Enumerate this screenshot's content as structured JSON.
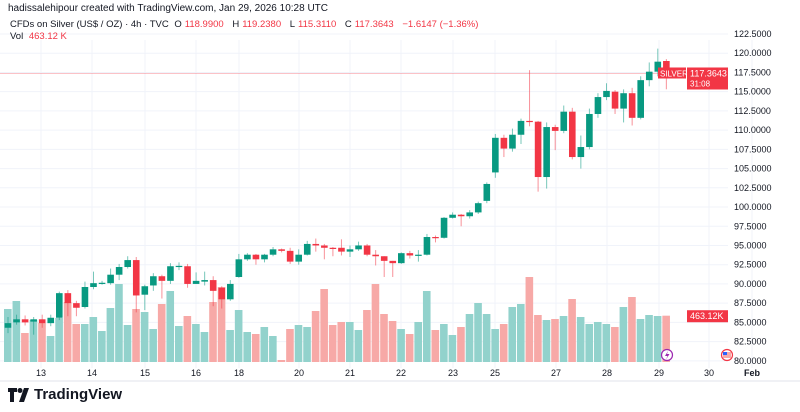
{
  "credit": "hadissalehipour created with TradingView.com, Jan 29, 2026 10:28 UTC",
  "legend": {
    "symbol": "CFDs on Silver (US$ / OZ) · 4h · TVC",
    "open_label": "O",
    "open": "118.9900",
    "high_label": "H",
    "high": "119.2380",
    "low_label": "L",
    "low": "115.3110",
    "close_label": "C",
    "close": "117.3643",
    "change": "−1.6147 (−1.36%)",
    "vol_label": "Vol",
    "vol": "463.12 K"
  },
  "price_axis": [
    "122.5000",
    "120.0000",
    "117.5000",
    "115.0000",
    "112.5000",
    "110.0000",
    "107.5000",
    "105.0000",
    "102.5000",
    "100.0000",
    "97.5000",
    "95.0000",
    "92.5000",
    "90.0000",
    "87.5000",
    "85.0000",
    "82.5000",
    "80.0000"
  ],
  "time_axis": [
    "13",
    "14",
    "15",
    "16",
    "18",
    "20",
    "21",
    "22",
    "23",
    "25",
    "27",
    "28",
    "29",
    "30",
    "Feb"
  ],
  "last_price": {
    "symbol": "SILVER",
    "price": "117.3643",
    "countdown": "31:08",
    "value": 117.3643
  },
  "volume_badge": "463.12K",
  "colors": {
    "up": "#089981",
    "down": "#f23645",
    "vol_up": "#92d2cc",
    "vol_down": "#f7a9a7"
  },
  "icons": [
    "lightning-event-icon",
    "us-flag-event-icon"
  ],
  "logo": "TradingView",
  "chart_data": {
    "type": "candlestick",
    "interval": "4h",
    "ylim": [
      80,
      122.5
    ],
    "fields": [
      "open",
      "high",
      "low",
      "close",
      "volume_k"
    ],
    "candles": [
      [
        84.3,
        85.7,
        83.6,
        84.9,
        530
      ],
      [
        85.0,
        86.0,
        84.7,
        85.4,
        610
      ],
      [
        85.4,
        85.9,
        84.6,
        85.0,
        290
      ],
      [
        85.1,
        85.7,
        83.4,
        85.4,
        420
      ],
      [
        85.4,
        86.0,
        84.3,
        84.9,
        390
      ],
      [
        84.9,
        86.0,
        84.5,
        85.6,
        260
      ],
      [
        85.6,
        89.0,
        85.3,
        88.8,
        440
      ],
      [
        88.8,
        89.2,
        85.8,
        87.5,
        600
      ],
      [
        87.5,
        87.8,
        85.8,
        86.9,
        380
      ],
      [
        87.0,
        90.3,
        86.8,
        89.6,
        380
      ],
      [
        89.6,
        91.6,
        89.3,
        90.1,
        450
      ],
      [
        90.1,
        90.4,
        89.9,
        90.15,
        310
      ],
      [
        90.1,
        92.0,
        89.9,
        91.2,
        540
      ],
      [
        91.2,
        92.6,
        90.5,
        92.2,
        780
      ],
      [
        92.2,
        93.6,
        92.0,
        93.1,
        370
      ],
      [
        93.1,
        93.5,
        86.3,
        88.5,
        530
      ],
      [
        88.6,
        89.9,
        86.6,
        89.7,
        500
      ],
      [
        89.8,
        91.4,
        89.1,
        91.0,
        330
      ],
      [
        91.0,
        91.2,
        88.1,
        90.4,
        580
      ],
      [
        90.4,
        92.7,
        90.0,
        92.3,
        710
      ],
      [
        92.3,
        92.8,
        91.8,
        92.35,
        360
      ],
      [
        92.3,
        92.6,
        89.5,
        90.0,
        460
      ],
      [
        90.0,
        91.5,
        90.0,
        90.4,
        380
      ],
      [
        90.3,
        91.6,
        89.8,
        90.5,
        300
      ],
      [
        90.5,
        91.0,
        87.1,
        89.1,
        600
      ],
      [
        89.5,
        89.7,
        86.8,
        88.0,
        750
      ],
      [
        88.0,
        90.5,
        87.8,
        90.0,
        320
      ],
      [
        90.9,
        93.9,
        90.8,
        93.2,
        520
      ],
      [
        93.2,
        94.0,
        93.0,
        93.8,
        300
      ],
      [
        93.8,
        93.9,
        92.5,
        93.2,
        280
      ],
      [
        93.2,
        93.9,
        92.8,
        93.8,
        350
      ],
      [
        93.8,
        94.8,
        93.6,
        94.5,
        260
      ],
      [
        94.5,
        94.6,
        94.1,
        94.3,
        20
      ],
      [
        94.3,
        94.7,
        92.6,
        92.9,
        330
      ],
      [
        92.9,
        94.5,
        92.5,
        93.8,
        370
      ],
      [
        93.8,
        95.6,
        93.7,
        95.2,
        350
      ],
      [
        95.2,
        95.9,
        94.2,
        95.0,
        510
      ],
      [
        95.0,
        95.2,
        93.2,
        94.7,
        730
      ],
      [
        94.7,
        94.8,
        93.6,
        94.68,
        370
      ],
      [
        94.7,
        95.8,
        93.7,
        94.2,
        400
      ],
      [
        94.2,
        95.0,
        93.5,
        94.5,
        400
      ],
      [
        94.5,
        95.5,
        94.3,
        95.0,
        320
      ],
      [
        95.0,
        95.2,
        93.6,
        93.8,
        520
      ],
      [
        93.8,
        94.4,
        92.4,
        93.6,
        780
      ],
      [
        93.6,
        93.6,
        90.9,
        93.0,
        480
      ],
      [
        93.0,
        93.0,
        90.9,
        92.7,
        410
      ],
      [
        92.7,
        94.1,
        92.6,
        94.0,
        330
      ],
      [
        94.0,
        94.3,
        93.3,
        93.7,
        280
      ],
      [
        93.7,
        94.4,
        92.9,
        93.8,
        400
      ],
      [
        93.8,
        96.5,
        93.7,
        96.1,
        710
      ],
      [
        96.1,
        96.3,
        95.4,
        96.0,
        320
      ],
      [
        96.0,
        98.7,
        95.9,
        98.6,
        380
      ],
      [
        98.6,
        99.3,
        98.5,
        99.0,
        270
      ],
      [
        99.0,
        99.1,
        97.5,
        98.8,
        350
      ],
      [
        98.8,
        99.6,
        98.5,
        99.3,
        480
      ],
      [
        99.3,
        100.7,
        99.1,
        100.5,
        590
      ],
      [
        100.8,
        103.2,
        100.5,
        103.0,
        480
      ],
      [
        104.5,
        109.5,
        103.8,
        109.0,
        330
      ],
      [
        109.0,
        109.4,
        106.5,
        107.6,
        380
      ],
      [
        107.6,
        110.2,
        107.2,
        109.4,
        550
      ],
      [
        109.4,
        111.5,
        108.2,
        111.2,
        580
      ],
      [
        111.2,
        117.8,
        110.5,
        111.1,
        850
      ],
      [
        111.1,
        111.2,
        102.0,
        103.9,
        470
      ],
      [
        103.9,
        111.0,
        102.4,
        110.4,
        420
      ],
      [
        110.4,
        110.7,
        107.4,
        109.9,
        430
      ],
      [
        109.9,
        113.2,
        109.6,
        112.4,
        460
      ],
      [
        112.4,
        112.9,
        106.2,
        106.5,
        630
      ],
      [
        106.5,
        109.3,
        105.0,
        107.8,
        450
      ],
      [
        107.8,
        112.8,
        107.5,
        112.1,
        380
      ],
      [
        112.1,
        114.8,
        111.6,
        114.3,
        400
      ],
      [
        114.3,
        116.1,
        113.9,
        115.1,
        380
      ],
      [
        115.0,
        115.2,
        112.1,
        112.8,
        350
      ],
      [
        112.8,
        115.3,
        111.0,
        114.8,
        550
      ],
      [
        114.8,
        115.5,
        110.6,
        111.6,
        650
      ],
      [
        111.6,
        117.0,
        111.4,
        116.5,
        430
      ],
      [
        116.5,
        118.8,
        115.7,
        117.6,
        470
      ],
      [
        117.6,
        120.6,
        117.0,
        118.9,
        460
      ],
      [
        118.99,
        119.238,
        115.311,
        117.3643,
        463.12
      ]
    ]
  }
}
